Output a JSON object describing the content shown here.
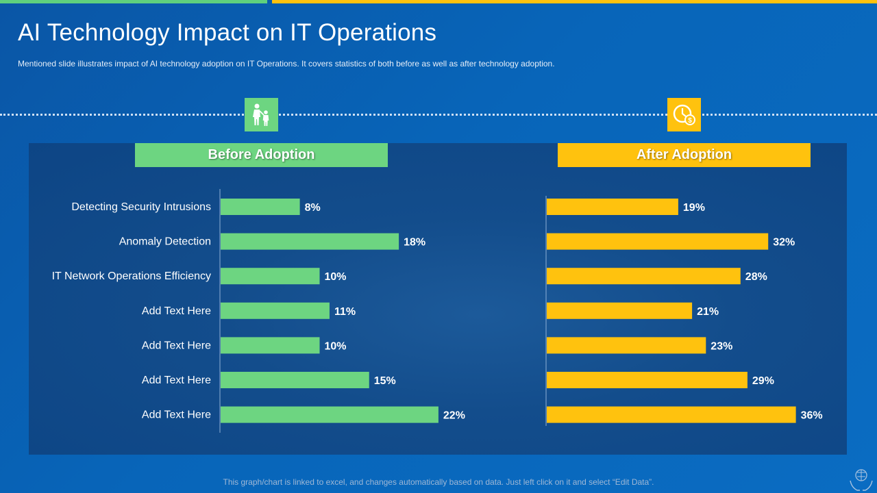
{
  "title": "AI Technology Impact on IT Operations",
  "subtitle": "Mentioned slide illustrates impact of AI technology adoption on IT Operations. It covers statistics of both before  as well as after technology adoption.",
  "footer": "This graph/chart is linked to excel, and changes automatically based on data. Just left click on it and select “Edit Data”.",
  "icons": {
    "before": "family-icon",
    "after": "clock-dollar-icon",
    "corner": "hands-brain-icon"
  },
  "colors": {
    "before": "#6dd581",
    "after": "#ffc20e",
    "background": "#0865b9",
    "panel": "#134d8c"
  },
  "chart_data": {
    "type": "bar",
    "orientation": "horizontal",
    "value_suffix": "%",
    "categories": [
      "Detecting Security Intrusions",
      "Anomaly Detection",
      "IT Network Operations Efficiency",
      "Add Text Here",
      "Add Text Here",
      "Add Text Here",
      "Add Text Here"
    ],
    "series": [
      {
        "name": "Before Adoption",
        "values": [
          8,
          18,
          10,
          11,
          10,
          15,
          22
        ]
      },
      {
        "name": "After Adoption",
        "values": [
          19,
          32,
          28,
          21,
          23,
          29,
          36
        ]
      }
    ]
  }
}
